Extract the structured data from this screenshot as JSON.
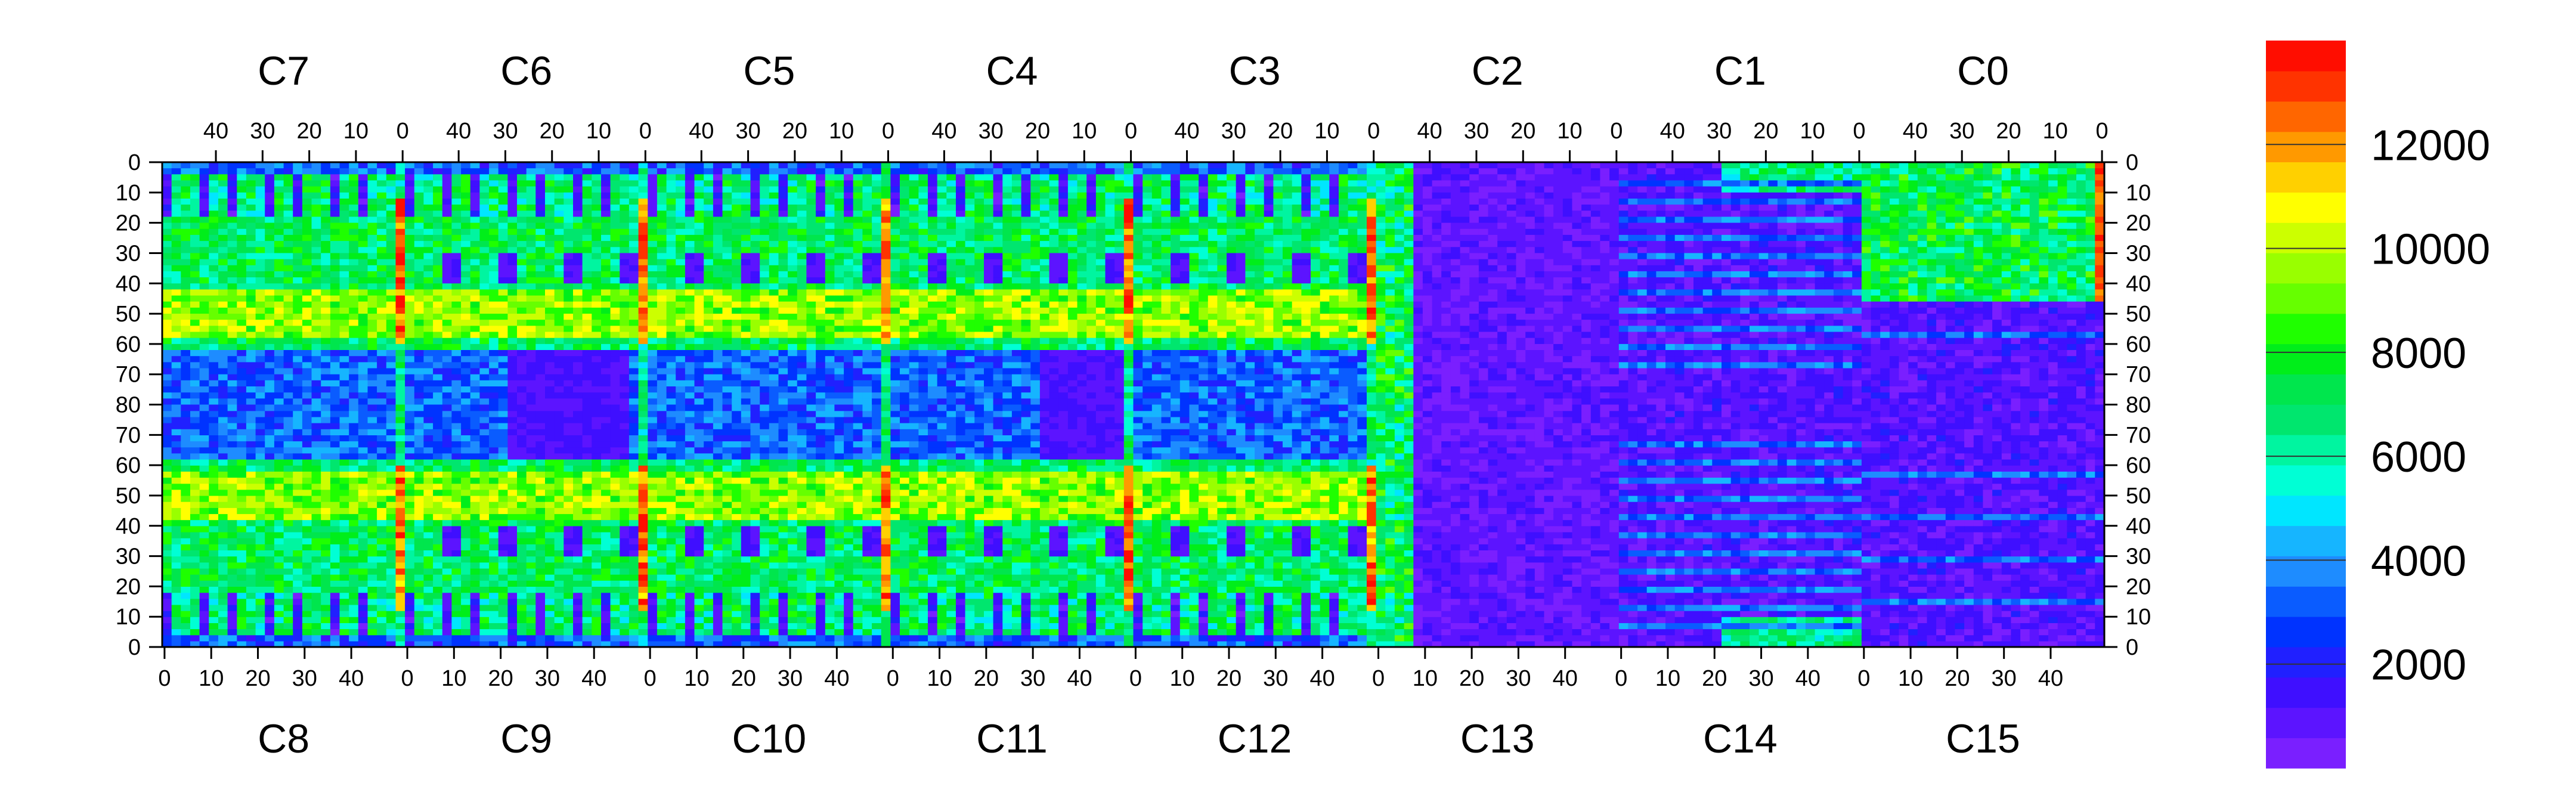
{
  "chart_data": {
    "type": "heatmap",
    "title": "",
    "top_chip_labels": [
      "C7",
      "C6",
      "C5",
      "C4",
      "C3",
      "C2",
      "C1",
      "C0"
    ],
    "bottom_chip_labels": [
      "C8",
      "C9",
      "C10",
      "C11",
      "C12",
      "C13",
      "C14",
      "C15"
    ],
    "top_x_ticks": [
      "40",
      "30",
      "20",
      "10",
      "0"
    ],
    "bottom_x_ticks": [
      "0",
      "10",
      "20",
      "30",
      "40"
    ],
    "y_ticks": [
      "0",
      "10",
      "20",
      "30",
      "40",
      "50",
      "60",
      "70",
      "80",
      "70",
      "60",
      "50",
      "40",
      "30",
      "20",
      "10",
      "0"
    ],
    "columns_per_chip": 52,
    "rows_per_half": 80,
    "z_range": [
      0,
      14000
    ],
    "colorbar_ticks": [
      "12000",
      "10000",
      "8000",
      "6000",
      "4000",
      "2000"
    ],
    "colorbar_tick_values": [
      12000,
      10000,
      8000,
      6000,
      4000,
      2000
    ],
    "palette": [
      "#7a1fff",
      "#5c14ff",
      "#3f0fff",
      "#2020ff",
      "#0033ff",
      "#0a5cff",
      "#1e8cff",
      "#16b5ff",
      "#00e6ff",
      "#00ffd5",
      "#00f5a0",
      "#00e66e",
      "#00e64d",
      "#00ee1a",
      "#1fff00",
      "#66ff00",
      "#99ff00",
      "#ccff00",
      "#ffff00",
      "#ffd000",
      "#ff9900",
      "#ff6600",
      "#ff3300",
      "#ff0d00"
    ],
    "grid": false
  }
}
